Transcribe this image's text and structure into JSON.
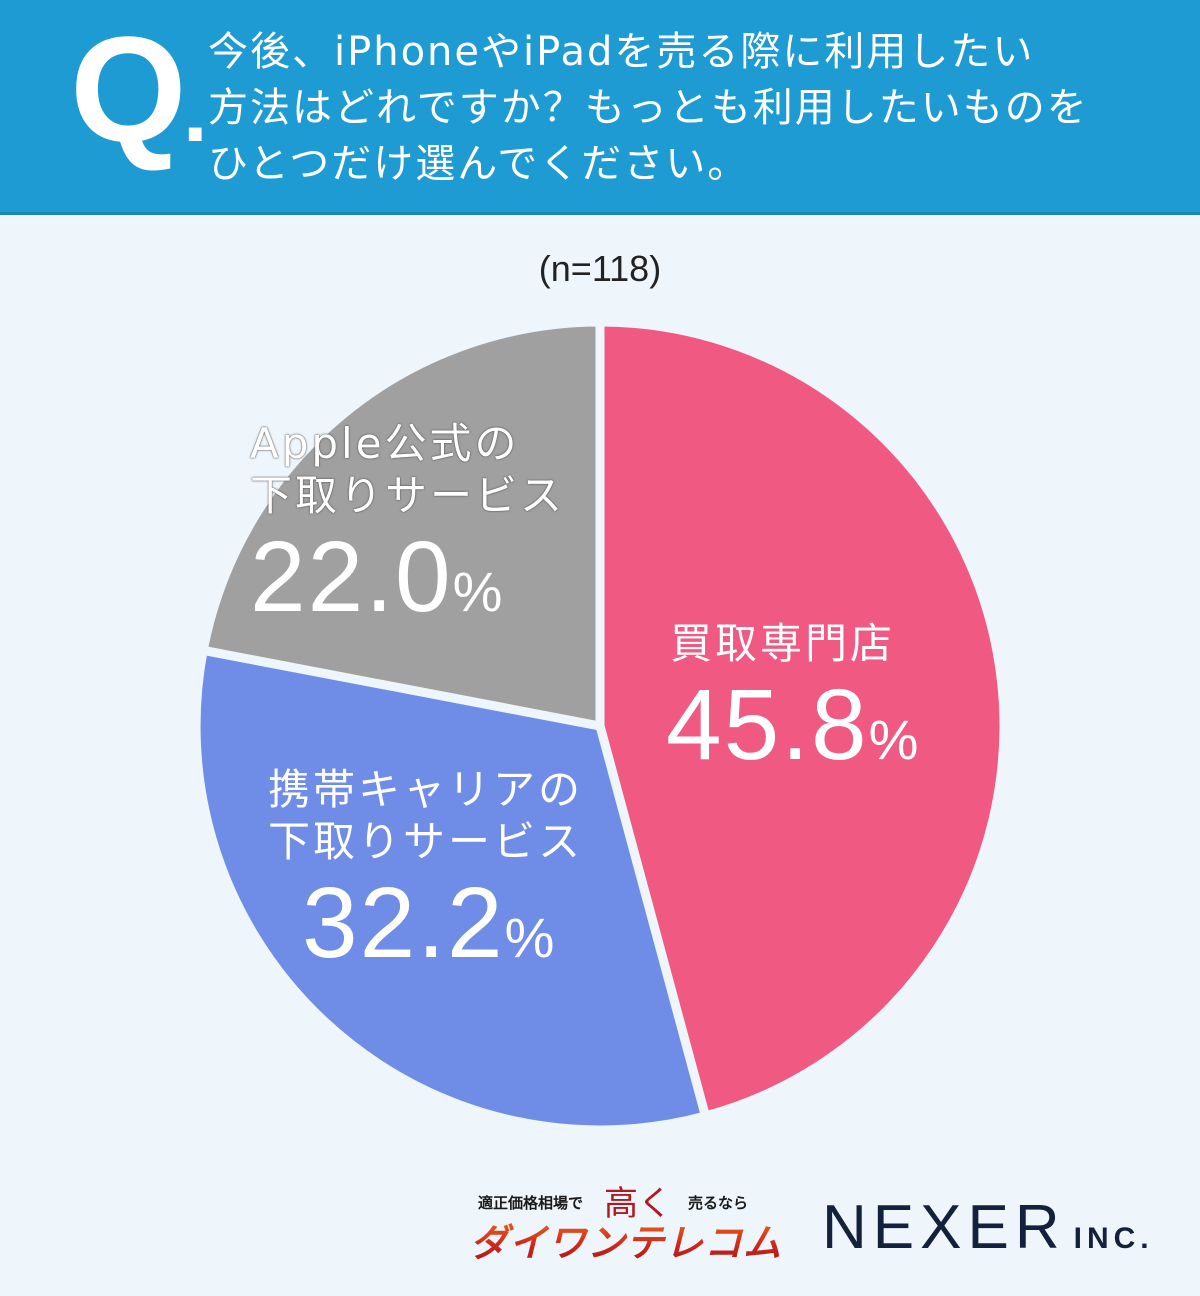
{
  "header": {
    "q_mark": "Q",
    "q_dot": ".",
    "question_lines": [
      "今後、iPhoneやiPadを売る際に利用したい",
      "方法はどれですか？もっとも利用したいものを",
      "ひとつだけ選んでください。"
    ]
  },
  "sample_size": "(n=118)",
  "colors": {
    "header_bg": "#1e9bd2",
    "page_bg": "#eef6fb",
    "pink": "#f05a82",
    "blue": "#6f8de6",
    "gray": "#a0a0a0",
    "separator": "#eef6fb"
  },
  "slices": [
    {
      "label": "買取専門店",
      "label_lines": [
        "買取専門店"
      ],
      "value_text": "45.8",
      "unit": "%"
    },
    {
      "label": "携帯キャリアの下取りサービス",
      "label_lines": [
        "携帯キャリアの",
        "下取りサービス"
      ],
      "value_text": "32.2",
      "unit": "%"
    },
    {
      "label": "Apple公式の下取りサービス",
      "label_lines": [
        "Apple公式の",
        "下取りサービス"
      ],
      "value_text": "22.0",
      "unit": "%"
    }
  ],
  "footer": {
    "sponsor_tag_left": "適正価格相場で",
    "sponsor_high": "高く",
    "sponsor_tag_right": "売るなら",
    "sponsor_brand": "ダイワンテレコム",
    "company_name": "NEXER",
    "company_suffix": "INC."
  },
  "chart_data": {
    "type": "pie",
    "title": "今後、iPhoneやiPadを売る際に利用したい方法はどれですか？もっとも利用したいものをひとつだけ選んでください。",
    "subtitle": "(n=118)",
    "categories": [
      "買取専門店",
      "携帯キャリアの下取りサービス",
      "Apple公式の下取りサービス"
    ],
    "values": [
      45.8,
      32.2,
      22.0
    ],
    "unit": "%",
    "colors": [
      "#f05a82",
      "#6f8de6",
      "#a0a0a0"
    ],
    "start_angle": "top (12 o'clock)",
    "direction": "clockwise",
    "legend": "none (labels inside slices)"
  }
}
